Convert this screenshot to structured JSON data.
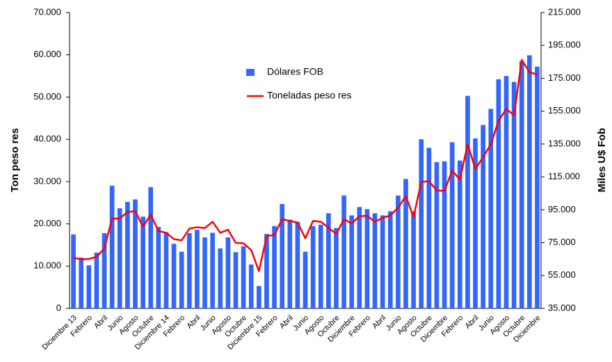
{
  "chart_data": {
    "type": "bar",
    "y_label": "Ton peso res",
    "y2_label": "Miles U$ Fob",
    "categories": [
      "Diciembre 13",
      null,
      "Febrero",
      null,
      "Abril",
      null,
      "Junio",
      null,
      "Agosto",
      null,
      "Octubre",
      null,
      "Diciembre 14",
      null,
      "Febrero",
      null,
      "Abril",
      null,
      "Junio",
      null,
      "Agosto",
      null,
      "Octubre",
      null,
      "Diciembre 15",
      null,
      "Febrero",
      null,
      "Abril",
      null,
      "Junio",
      null,
      "Agosto",
      null,
      "Octubre",
      null,
      "Diciembre",
      null,
      "Febrero",
      null,
      "Abril",
      null,
      "Junio",
      null,
      "Agosto",
      null,
      "Octubre",
      null,
      "Diciembre",
      null,
      "Febrero",
      null,
      "Abril",
      null,
      "Junio",
      null,
      "Agosto",
      null,
      "Octubre",
      null,
      "Diciembre"
    ],
    "series": [
      {
        "name": "Dólares FOB",
        "type": "bar",
        "axis": "y2",
        "color": "#3366ff",
        "values": [
          80000,
          65900,
          61200,
          68900,
          80800,
          109600,
          95900,
          99800,
          101300,
          90800,
          108800,
          84600,
          81300,
          74300,
          69500,
          80800,
          82800,
          78200,
          81000,
          71500,
          78200,
          69200,
          72800,
          61700,
          48600,
          80300,
          85100,
          98500,
          89000,
          87700,
          69500,
          85100,
          85900,
          92900,
          83900,
          103700,
          91600,
          96700,
          95400,
          92900,
          91600,
          94100,
          103700,
          113700,
          94100,
          137900,
          132700,
          124000,
          124500,
          136100,
          125000,
          164300,
          138400,
          146600,
          156400,
          174400,
          176400,
          172800,
          185400,
          189000,
          182100
        ]
      },
      {
        "name": "Toneladas peso res",
        "type": "line",
        "color": "#ff0000",
        "values": [
          12000,
          11600,
          11700,
          12200,
          14200,
          21200,
          21300,
          22800,
          23000,
          19300,
          22200,
          18300,
          17900,
          16400,
          16100,
          18900,
          19200,
          19000,
          20500,
          17900,
          18600,
          15500,
          15400,
          13800,
          8800,
          17100,
          17400,
          21100,
          20700,
          20300,
          16600,
          20700,
          20500,
          19100,
          17600,
          21100,
          20100,
          21800,
          21900,
          20500,
          21400,
          22000,
          23800,
          26600,
          21600,
          29900,
          30100,
          27900,
          27800,
          32600,
          30500,
          38800,
          33000,
          35800,
          38800,
          44400,
          47200,
          45700,
          58800,
          55900,
          55300
        ]
      }
    ],
    "ylim": [
      0,
      70000
    ],
    "yticks": [
      0,
      {
        "value": 10000,
        "label": "10.000"
      },
      {
        "value": 20000,
        "label": "20.000"
      },
      {
        "value": 30000,
        "label": "30.000"
      },
      {
        "value": 40000,
        "label": "40.000"
      },
      {
        "value": 50000,
        "label": "50.000"
      },
      {
        "value": 60000,
        "label": "60.000"
      },
      {
        "value": 70000,
        "label": "70.000"
      }
    ],
    "y2lim": [
      35000,
      215000
    ],
    "y2ticks": [
      {
        "value": 35000,
        "label": "35.000"
      },
      {
        "value": 55000,
        "label": "55.000"
      },
      {
        "value": 75000,
        "label": "75.000"
      },
      {
        "value": 95000,
        "label": "95.000"
      },
      {
        "value": 115000,
        "label": "115.000"
      },
      {
        "value": 135000,
        "label": "135.000"
      },
      {
        "value": 155000,
        "label": "155.000"
      },
      {
        "value": 175000,
        "label": "175.000"
      },
      {
        "value": 195000,
        "label": "195.000"
      },
      {
        "value": 215000,
        "label": "215.000"
      }
    ],
    "grid": false
  }
}
